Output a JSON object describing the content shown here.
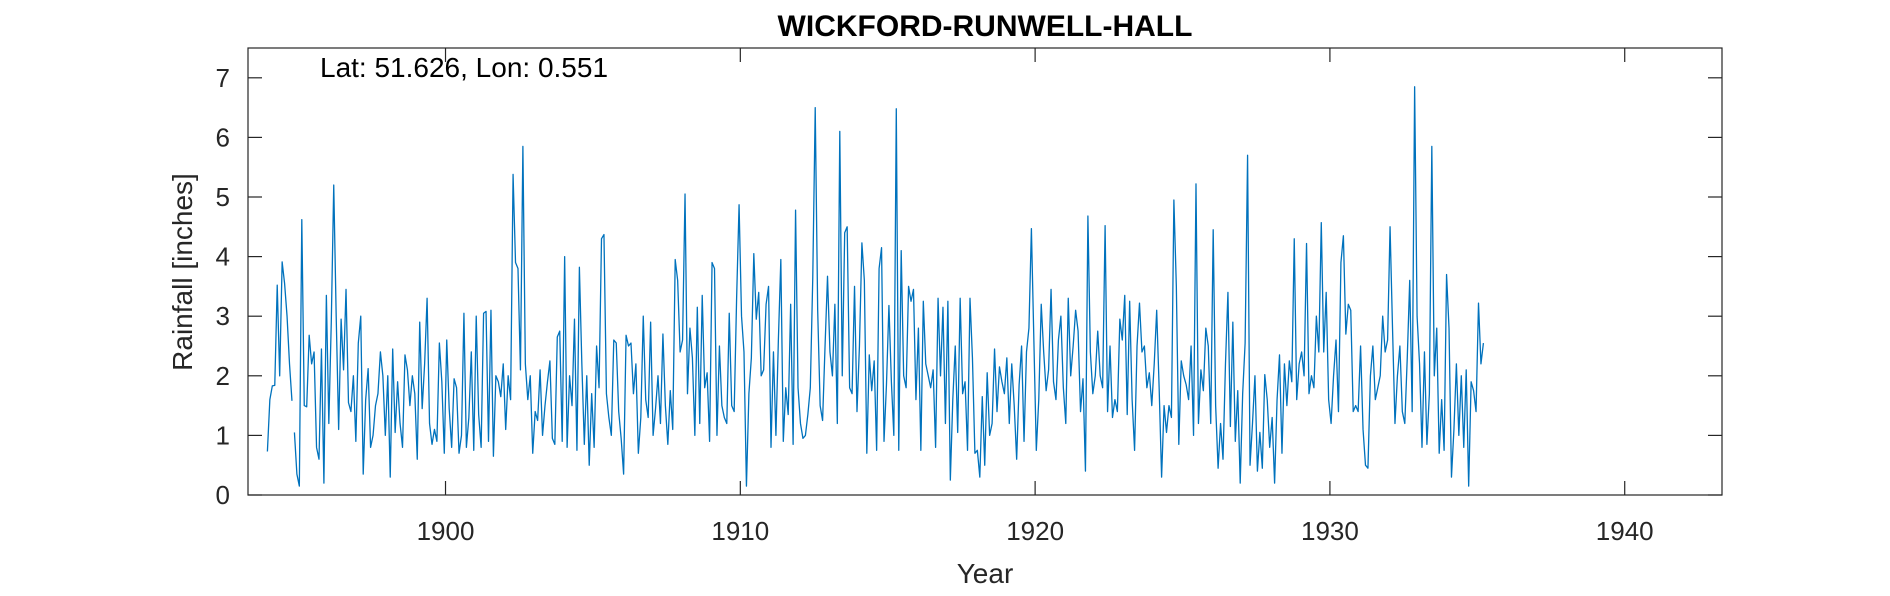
{
  "chart_data": {
    "type": "line",
    "title": "WICKFORD-RUNWELL-HALL",
    "xlabel": "Year",
    "ylabel": "Rainfall [inches]",
    "annotation": "Lat: 51.626, Lon: 0.551",
    "xlim": [
      1893.3,
      1943.3
    ],
    "ylim": [
      0,
      7.5
    ],
    "xticks": [
      1900,
      1910,
      1920,
      1930,
      1940
    ],
    "yticks": [
      0,
      1,
      2,
      3,
      4,
      5,
      6,
      7
    ],
    "grid": false,
    "box": true,
    "series": [
      {
        "color": "#0072BD",
        "segments": [
          {
            "start": 1893.958,
            "step": 0.08333,
            "y": [
              0.73,
              1.6,
              1.83,
              1.84,
              3.52,
              2.0,
              3.91,
              3.55,
              3.0,
              2.2,
              1.58
            ]
          },
          {
            "start": 1894.875,
            "step": 0.08333,
            "y": [
              1.05,
              0.35,
              0.15,
              4.62,
              1.5,
              1.48,
              2.68,
              2.2,
              2.4,
              0.8,
              0.6,
              2.45,
              0.2,
              3.35,
              1.2,
              2.9,
              5.2,
              3.0,
              1.1,
              2.95,
              2.1,
              3.45,
              1.55,
              1.4,
              2.0,
              0.9,
              2.55,
              3.0,
              0.35,
              1.6,
              2.12,
              0.8,
              1.0,
              1.5,
              1.7,
              2.4,
              2.0,
              1.0,
              2.0,
              0.3,
              2.45,
              1.05,
              1.9,
              1.2,
              0.8,
              2.35,
              2.1,
              1.5,
              2.0,
              1.7,
              0.6,
              2.9,
              1.45,
              2.2,
              3.3,
              1.2,
              0.85,
              1.1,
              0.9,
              2.55,
              1.9,
              0.7,
              2.6,
              1.45,
              0.8,
              1.95,
              1.8,
              0.7,
              1.0,
              3.05,
              0.8,
              1.3,
              2.4,
              0.75,
              3.0,
              1.35,
              0.8,
              3.05,
              3.08,
              0.9,
              3.1,
              0.65,
              2.0,
              1.9,
              1.65,
              2.2,
              1.1,
              2.0,
              1.6,
              5.38,
              3.9,
              3.8,
              2.1,
              5.85,
              2.2,
              1.6,
              2.0,
              0.7,
              1.4,
              1.25,
              2.1,
              1.0,
              1.5,
              1.9,
              2.25,
              0.95,
              0.85,
              2.65,
              2.75,
              0.9,
              4.0,
              0.8,
              2.0,
              1.5,
              2.95,
              0.75,
              3.82,
              2.2,
              0.85,
              2.0,
              0.5,
              1.7,
              0.8,
              2.5,
              1.8,
              4.3,
              4.37,
              1.7,
              1.3,
              1.0,
              2.6,
              2.55,
              1.4,
              0.95,
              0.35,
              2.68,
              2.5,
              2.55,
              1.7,
              2.2,
              0.7,
              1.3,
              3.0,
              1.6,
              1.3,
              2.9,
              1.0,
              1.45,
              2.0,
              1.2,
              2.7,
              1.5,
              0.85,
              1.75,
              1.1,
              3.95,
              3.6,
              2.4,
              2.6,
              5.05,
              1.7,
              2.8,
              2.3,
              1.0,
              3.15,
              1.2,
              3.35,
              1.8,
              2.05,
              0.9,
              3.9,
              3.8,
              1.0,
              2.5,
              1.5,
              1.3,
              1.2,
              3.05,
              1.5,
              1.4,
              3.3,
              4.87,
              3.0,
              2.4,
              0.15,
              1.7,
              2.3,
              4.05,
              2.95,
              3.4,
              2.0,
              2.1,
              3.2,
              3.5,
              0.8,
              2.4,
              1.0,
              2.6,
              3.95,
              0.9,
              1.8,
              1.35,
              3.2,
              0.85,
              4.78,
              1.8,
              1.2,
              0.95,
              1.0,
              1.35,
              1.8,
              3.65,
              6.5,
              3.1,
              1.5,
              1.25,
              2.5,
              3.67,
              2.4,
              2.0,
              3.2,
              1.2,
              6.1,
              2.0,
              4.4,
              4.5,
              1.8,
              1.7,
              3.5,
              1.4,
              2.5,
              4.23,
              3.6,
              0.7,
              2.35,
              1.75,
              2.25,
              0.75,
              3.8,
              4.15,
              0.9,
              1.85,
              3.18,
              1.9,
              1.0,
              6.48,
              0.75,
              4.1,
              2.0,
              1.8,
              3.5,
              3.25,
              3.45,
              1.6,
              2.8,
              0.75,
              3.25,
              2.2,
              2.0,
              1.8,
              2.1,
              0.8,
              3.3,
              2.0,
              3.15,
              1.2,
              3.25,
              0.25,
              1.6,
              2.5,
              1.05,
              3.3,
              1.7,
              1.9,
              0.75,
              3.3,
              2.3,
              0.7,
              0.75,
              0.3,
              1.65,
              0.5,
              2.05,
              1.0,
              1.2,
              2.45,
              1.4,
              2.15,
              1.9,
              1.7,
              2.3,
              1.2,
              2.2,
              1.5,
              0.6,
              1.85,
              2.5,
              0.9,
              2.4,
              2.8,
              4.47,
              2.6,
              0.75,
              1.6,
              3.2,
              2.4,
              1.75,
              2.1,
              3.45,
              1.9,
              1.6,
              2.6,
              3.0,
              1.8,
              1.2,
              3.3,
              2.0,
              2.5,
              3.1,
              2.75,
              1.4,
              1.95,
              0.4,
              4.68,
              2.4,
              1.7,
              2.0,
              2.75,
              2.0,
              1.8,
              4.52,
              1.4,
              2.5,
              1.3,
              1.6,
              1.4,
              2.95,
              2.6,
              3.35,
              1.35,
              3.25,
              1.6,
              0.75,
              2.5,
              3.22,
              2.4,
              2.5,
              1.8,
              2.05,
              1.5,
              2.2,
              3.1,
              1.8,
              0.3,
              1.5,
              1.05,
              1.5,
              1.3,
              4.95,
              3.5,
              0.85,
              2.25,
              2.0,
              1.85,
              1.6,
              2.5,
              1.0,
              5.22,
              1.2,
              2.1,
              1.75,
              2.8,
              2.5,
              1.2,
              4.45,
              1.5,
              0.45,
              1.2,
              0.6,
              2.2,
              3.4,
              1.15,
              2.9,
              0.9,
              1.75,
              0.2,
              1.7,
              2.55,
              5.7,
              0.5,
              1.2,
              2.0,
              0.4,
              1.05,
              0.45,
              2.02,
              1.6,
              0.8,
              1.3,
              0.2,
              1.6,
              2.35,
              0.7,
              2.2,
              1.5,
              2.25,
              1.9,
              4.3,
              1.6,
              2.2,
              2.4,
              2.0,
              4.22,
              1.7,
              2.0,
              1.8,
              3.0,
              2.4,
              4.57,
              2.4,
              3.4,
              1.6,
              1.2,
              2.0,
              2.6,
              1.4,
              3.9,
              4.35,
              2.7,
              3.2,
              3.1,
              1.4,
              1.5,
              1.4,
              2.5,
              1.1,
              0.5,
              0.45,
              2.0,
              2.5,
              1.6,
              1.8,
              2.0,
              3.0,
              2.4,
              2.6,
              4.5,
              2.8,
              1.2,
              2.0,
              2.5,
              1.4,
              1.2,
              2.3,
              3.6,
              1.4,
              6.85,
              3.0,
              2.2,
              0.8,
              2.4,
              0.85,
              1.7,
              5.85,
              2.0,
              2.8,
              0.7,
              1.6,
              0.75,
              3.7,
              2.8,
              0.3,
              1.1,
              2.2,
              1.0,
              2.0,
              0.8,
              2.1,
              0.15,
              1.9,
              1.75,
              1.4,
              3.22,
              2.2,
              2.55
            ]
          }
        ]
      }
    ]
  }
}
